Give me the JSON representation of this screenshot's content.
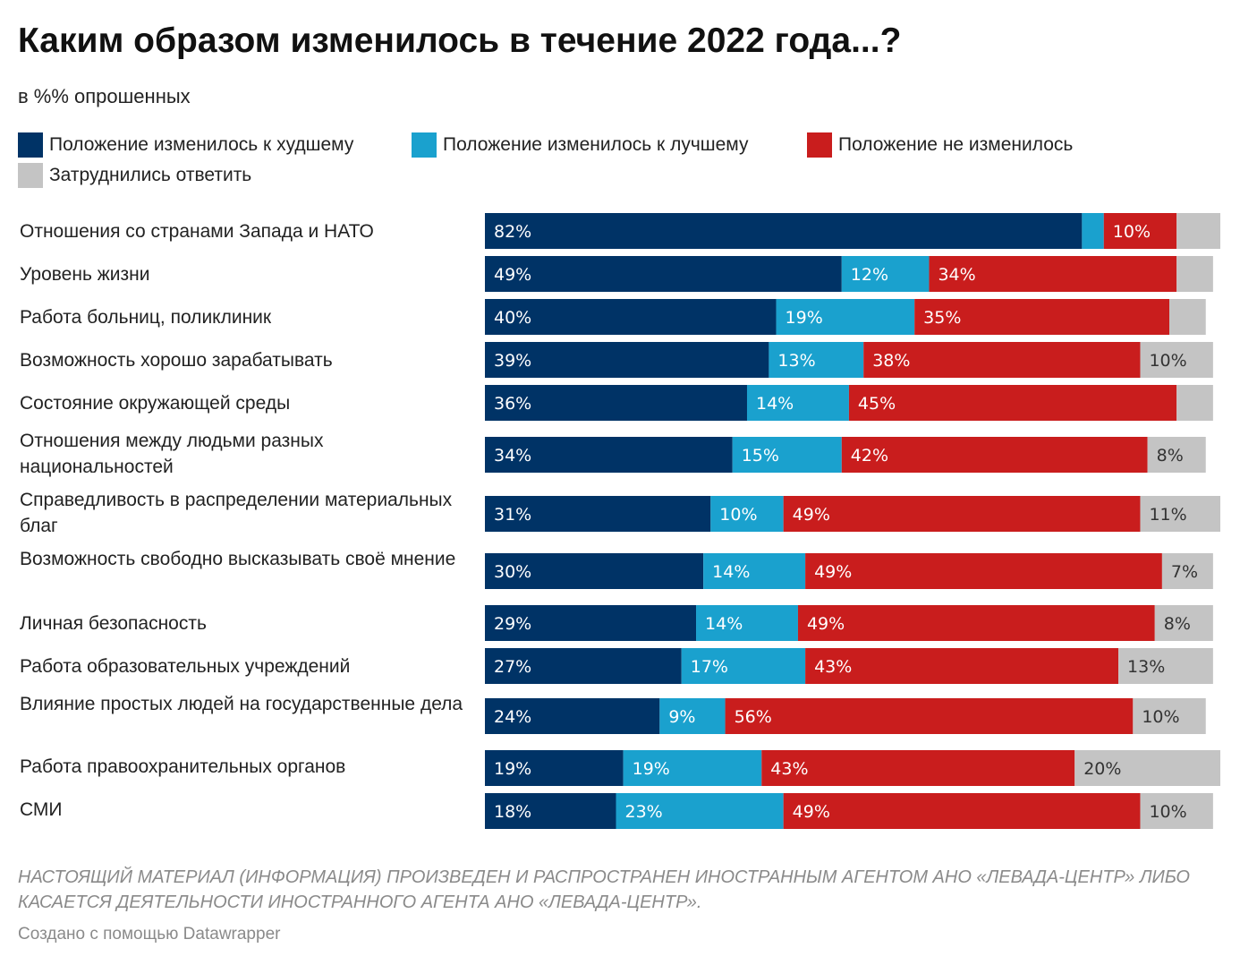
{
  "colors": {
    "worse": "#003366",
    "better": "#1aa1ce",
    "nochange": "#c91d1d",
    "hard": "#c4c4c4"
  },
  "chart_data": {
    "type": "bar",
    "orientation": "horizontal",
    "stacked": true,
    "title": "Каким образом изменилось в течение 2022 года...?",
    "subtitle": "в %% опрошенных",
    "legend": [
      {
        "key": "worse",
        "label": "Положение изменилось к худшему"
      },
      {
        "key": "better",
        "label": "Положение изменилось к лучшему"
      },
      {
        "key": "nochange",
        "label": "Положение не изменилось"
      },
      {
        "key": "hard",
        "label": "Затруднились ответить"
      }
    ],
    "categories": [
      "Отношения со странами Запада и НАТО",
      "Уровень жизни",
      "Работа больниц, поликлиник",
      "Возможность хорошо зарабатывать",
      "Состояние окружающей среды",
      "Отношения между людьми разных национальностей",
      "Справедливость в распределении материальных благ",
      "Возможность свободно высказывать своё мнение",
      "Личная безопасность",
      "Работа образовательных учреждений",
      "Влияние простых людей на государственные дела",
      "Работа правоохранительных органов",
      "СМИ"
    ],
    "series": [
      {
        "key": "worse",
        "name": "Положение изменилось к худшему",
        "values": [
          82,
          49,
          40,
          39,
          36,
          34,
          31,
          30,
          29,
          27,
          24,
          19,
          18
        ]
      },
      {
        "key": "better",
        "name": "Положение изменилось к лучшему",
        "values": [
          3,
          12,
          19,
          13,
          14,
          15,
          10,
          14,
          14,
          17,
          9,
          19,
          23
        ]
      },
      {
        "key": "nochange",
        "name": "Положение не изменилось",
        "values": [
          10,
          34,
          35,
          38,
          45,
          42,
          49,
          49,
          49,
          43,
          56,
          43,
          49
        ]
      },
      {
        "key": "hard",
        "name": "Затруднились ответить",
        "values": [
          6,
          5,
          5,
          10,
          5,
          8,
          11,
          7,
          8,
          13,
          10,
          20,
          10
        ]
      }
    ],
    "xlim": [
      0,
      101
    ],
    "value_suffix": "%",
    "label_min": 7
  },
  "footer": {
    "disclaimer": "Настоящий материал (информация) произведен и распространен иностранным агентом АНО «Левада-Центр» либо касается деятельности иностранного агента АНО «Левада-Центр».",
    "credit": "Создано с помощью Datawrapper"
  }
}
